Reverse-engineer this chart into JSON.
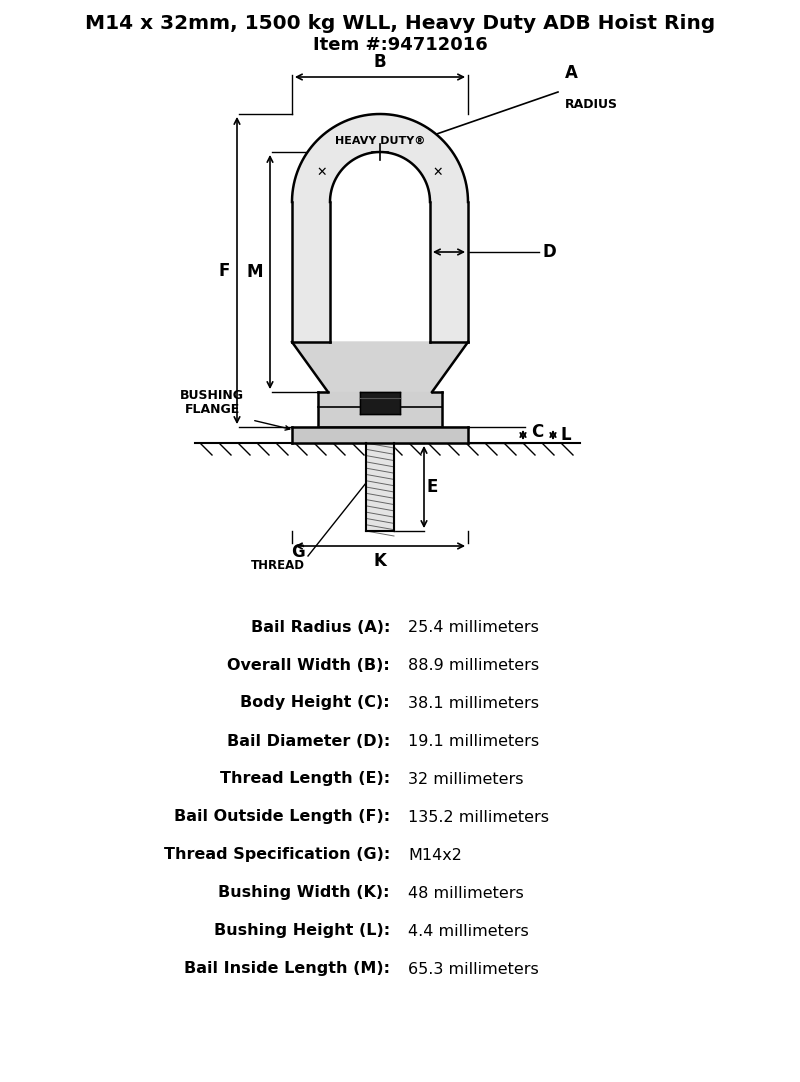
{
  "title_line1": "M14 x 32mm, 1500 kg WLL, Heavy Duty ADB Hoist Ring",
  "title_line2": "Item #:94712016",
  "specs": [
    {
      "label": "Bail Radius (A):",
      "value": "25.4 millimeters"
    },
    {
      "label": "Overall Width (B):",
      "value": "88.9 millimeters"
    },
    {
      "label": "Body Height (C):",
      "value": "38.1 millimeters"
    },
    {
      "label": "Bail Diameter (D):",
      "value": "19.1 millimeters"
    },
    {
      "label": "Thread Length (E):",
      "value": "32 millimeters"
    },
    {
      "label": "Bail Outside Length (F):",
      "value": "135.2 millimeters"
    },
    {
      "label": "Thread Specification (G):",
      "value": "M14x2"
    },
    {
      "label": "Bushing Width (K):",
      "value": "48 millimeters"
    },
    {
      "label": "Bushing Height (L):",
      "value": "4.4 millimeters"
    },
    {
      "label": "Bail Inside Length (M):",
      "value": "65.3 millimeters"
    }
  ],
  "bg_color": "#ffffff",
  "line_color": "#000000",
  "title_fontsize": 14.5,
  "subtitle_fontsize": 13,
  "spec_label_fontsize": 11.5,
  "spec_value_fontsize": 11.5,
  "diagram_color": "#e8e8e8",
  "dark_color": "#1a1a1a"
}
